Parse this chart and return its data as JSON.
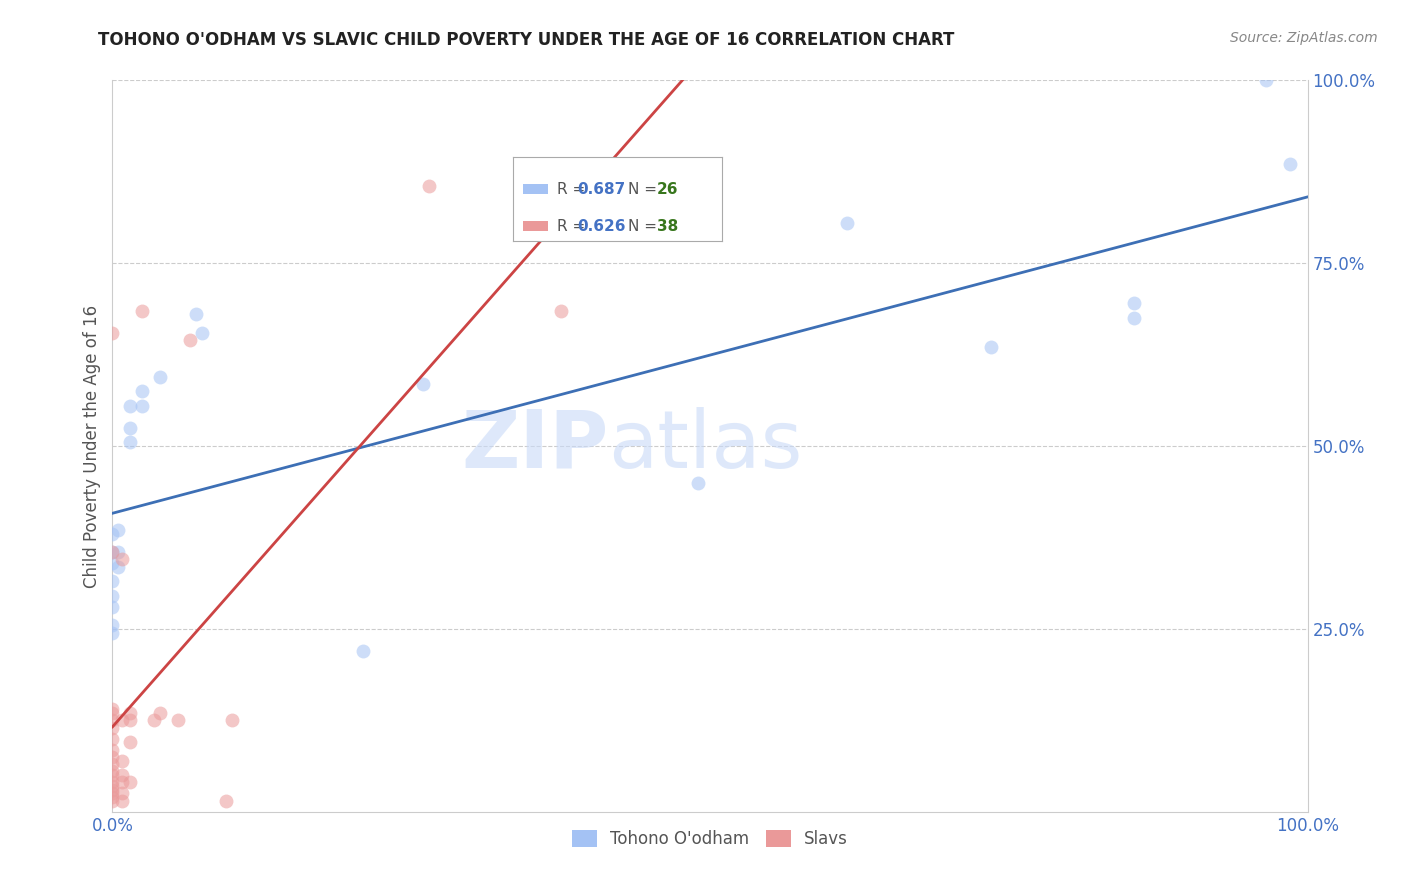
{
  "title": "TOHONO O'ODHAM VS SLAVIC CHILD POVERTY UNDER THE AGE OF 16 CORRELATION CHART",
  "source": "Source: ZipAtlas.com",
  "ylabel": "Child Poverty Under the Age of 16",
  "xlim": [
    0,
    1
  ],
  "ylim": [
    0,
    1
  ],
  "watermark_line1": "ZIP",
  "watermark_line2": "atlas",
  "tohono_points": [
    [
      0.0,
      0.38
    ],
    [
      0.0,
      0.355
    ],
    [
      0.0,
      0.34
    ],
    [
      0.0,
      0.315
    ],
    [
      0.0,
      0.295
    ],
    [
      0.0,
      0.28
    ],
    [
      0.0,
      0.255
    ],
    [
      0.0,
      0.245
    ],
    [
      0.005,
      0.385
    ],
    [
      0.005,
      0.355
    ],
    [
      0.005,
      0.335
    ],
    [
      0.015,
      0.555
    ],
    [
      0.015,
      0.525
    ],
    [
      0.015,
      0.505
    ],
    [
      0.025,
      0.575
    ],
    [
      0.025,
      0.555
    ],
    [
      0.04,
      0.595
    ],
    [
      0.07,
      0.68
    ],
    [
      0.075,
      0.655
    ],
    [
      0.21,
      0.22
    ],
    [
      0.26,
      0.585
    ],
    [
      0.49,
      0.45
    ],
    [
      0.615,
      0.805
    ],
    [
      0.735,
      0.635
    ],
    [
      0.855,
      0.695
    ],
    [
      0.855,
      0.675
    ],
    [
      0.965,
      1.0
    ],
    [
      0.985,
      0.885
    ]
  ],
  "slavic_points": [
    [
      0.0,
      0.015
    ],
    [
      0.0,
      0.02
    ],
    [
      0.0,
      0.025
    ],
    [
      0.0,
      0.03
    ],
    [
      0.0,
      0.035
    ],
    [
      0.0,
      0.04
    ],
    [
      0.0,
      0.05
    ],
    [
      0.0,
      0.055
    ],
    [
      0.0,
      0.065
    ],
    [
      0.0,
      0.075
    ],
    [
      0.0,
      0.085
    ],
    [
      0.0,
      0.1
    ],
    [
      0.0,
      0.115
    ],
    [
      0.0,
      0.125
    ],
    [
      0.0,
      0.135
    ],
    [
      0.0,
      0.14
    ],
    [
      0.0,
      0.355
    ],
    [
      0.0,
      0.655
    ],
    [
      0.008,
      0.015
    ],
    [
      0.008,
      0.025
    ],
    [
      0.008,
      0.04
    ],
    [
      0.008,
      0.05
    ],
    [
      0.008,
      0.07
    ],
    [
      0.008,
      0.125
    ],
    [
      0.008,
      0.345
    ],
    [
      0.015,
      0.04
    ],
    [
      0.015,
      0.095
    ],
    [
      0.015,
      0.125
    ],
    [
      0.015,
      0.135
    ],
    [
      0.025,
      0.685
    ],
    [
      0.035,
      0.125
    ],
    [
      0.04,
      0.135
    ],
    [
      0.055,
      0.125
    ],
    [
      0.065,
      0.645
    ],
    [
      0.095,
      0.015
    ],
    [
      0.1,
      0.125
    ],
    [
      0.265,
      0.855
    ],
    [
      0.375,
      0.685
    ]
  ],
  "tohono_color": "#a4c2f4",
  "slavic_color": "#ea9999",
  "tohono_line_color": "#3d6fb5",
  "slavic_line_color": "#cc4444",
  "bg_color": "#ffffff",
  "grid_color": "#cccccc",
  "marker_size": 100,
  "marker_alpha": 0.55,
  "title_color": "#222222",
  "axis_label_color": "#555555",
  "tick_color": "#4472c4",
  "legend_r_color": "#4472c4",
  "legend_n_color": "#38761d",
  "right_tick_color": "#4472c4"
}
